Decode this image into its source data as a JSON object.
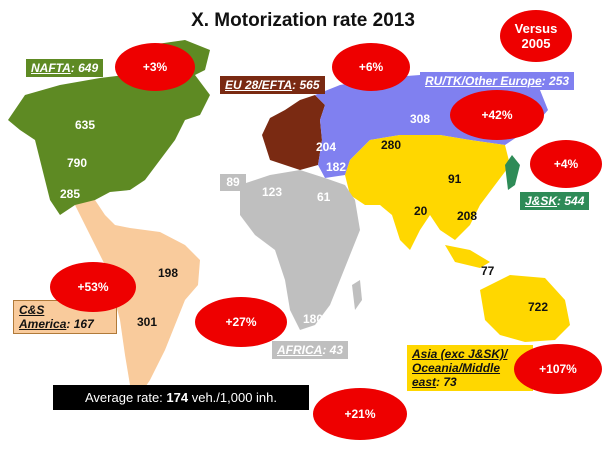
{
  "title": "X. Motorization rate 2013",
  "versus": "Versus 2005",
  "regions": {
    "nafta": {
      "name": "NAFTA",
      "value": "649",
      "change": "+3%",
      "color": "#5e8a23"
    },
    "eu": {
      "name": "EU 28/EFTA",
      "value": "565",
      "change": "+6%",
      "color": "#7a2a12"
    },
    "ru": {
      "name": "RU/TK/Other Europe",
      "value": "253",
      "change": "+42%",
      "color": "#8080f0"
    },
    "jsk": {
      "name": "J&SK",
      "value": "544",
      "change": "+4%",
      "color": "#2e8b57"
    },
    "cs": {
      "name": "C&S America",
      "name_line1": "C&S",
      "name_line2": "America",
      "value": "167",
      "change": "+53%",
      "color": "#f9cb9c"
    },
    "africa": {
      "name": "AFRICA",
      "value": "43",
      "change": "+27%",
      "color": "#bfbfbf"
    },
    "asia": {
      "name": "Asia (exc J&SK)/Oceania/Middle east",
      "line1": "Asia (exc J&SK)/",
      "line2": "Oceania/Middle",
      "line3": "east",
      "value": "73",
      "change": "+107%",
      "color": "#ffd700"
    }
  },
  "country_values": {
    "canada": "635",
    "usa": "790",
    "mexico": "285",
    "brazil": "198",
    "argentina": "301",
    "russia": "308",
    "kazakhstan": "280",
    "ukraine": "204",
    "turkey": "182",
    "china": "91",
    "india": "20",
    "thailand": "208",
    "indonesia": "77",
    "australia": "722",
    "morocco": "89",
    "algeria": "123",
    "egypt": "61",
    "south_africa": "180"
  },
  "average": {
    "prefix": "Average rate: ",
    "value": "174",
    "suffix": " veh./1,000 inh.",
    "change": "+21%"
  }
}
